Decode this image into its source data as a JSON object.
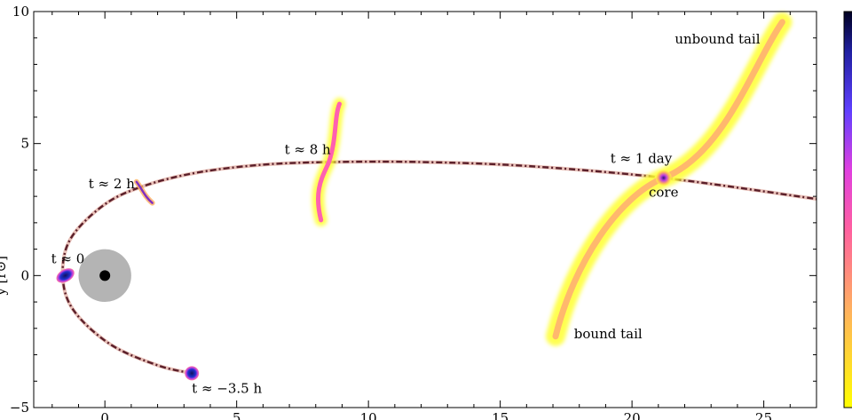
{
  "chart_data": {
    "type": "scatter",
    "ylabel": "y [r⊙]",
    "xlim": [
      -2.7,
      27
    ],
    "ylim": [
      -5,
      10
    ],
    "x_ticks": [
      0,
      5,
      10,
      15,
      20,
      25
    ],
    "y_ticks": [
      -5,
      0,
      5,
      10
    ],
    "x_tick_labels": [
      "0",
      "5",
      "10",
      "15",
      "20",
      "25"
    ],
    "y_tick_labels": [
      "−5",
      "0",
      "5",
      "10"
    ],
    "grid": false,
    "black_hole": {
      "x": 0,
      "y": 0,
      "radius": 1.0
    },
    "orbit": {
      "pericenter_x": -1.6,
      "points": [
        [
          3.3,
          -3.7
        ],
        [
          2.0,
          -3.4
        ],
        [
          0.2,
          -2.6
        ],
        [
          -1.2,
          -1.3
        ],
        [
          -1.6,
          0
        ],
        [
          -1.3,
          1.4
        ],
        [
          0,
          2.7
        ],
        [
          1.5,
          3.4
        ],
        [
          3.5,
          3.9
        ],
        [
          6,
          4.2
        ],
        [
          8.6,
          4.3
        ],
        [
          12,
          4.3
        ],
        [
          16,
          4.15
        ],
        [
          21.2,
          3.7
        ],
        [
          27,
          2.9
        ]
      ]
    },
    "snapshots": [
      {
        "label": "t ≈ −3.5 h",
        "x": 3.3,
        "y": -3.7
      },
      {
        "label": "t ≈ 0",
        "x": -1.5,
        "y": 0
      },
      {
        "label": "t ≈ 2 h",
        "x": 1.4,
        "y": 3.2
      },
      {
        "label": "t ≈ 8 h",
        "x": 8.5,
        "y": 4.3
      },
      {
        "label": "t ≈ 1 day",
        "x": 21.2,
        "y": 3.7
      }
    ],
    "annotations": {
      "core": "core",
      "unbound_tail": "unbound tail",
      "bound_tail": "bound tail"
    },
    "colors": {
      "orbit_dark": "#5a1f2a",
      "orbit_light": "#e8c0b8",
      "black_hole_disk": "#b4b4b4",
      "black_hole_core": "#000000",
      "density_low": "#ffff00",
      "density_mid": "#ff9060",
      "density_high": "#ff40c0",
      "density_peak": "#1a0a6a"
    }
  }
}
